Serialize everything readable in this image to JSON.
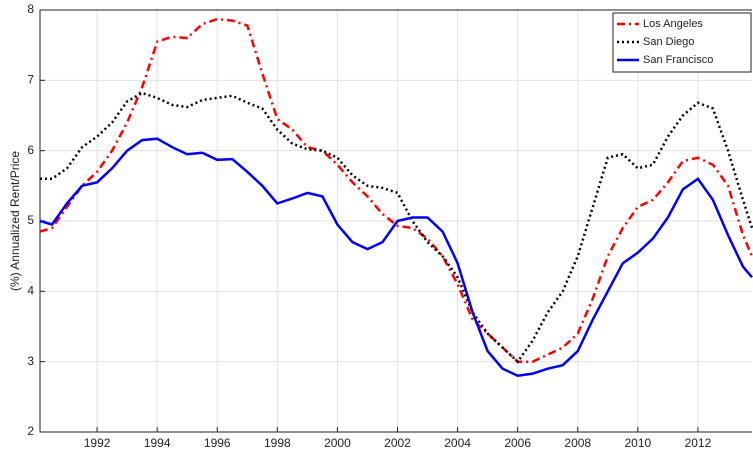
{
  "chart_data": {
    "type": "line",
    "y_label": "(%) Annualized Rent/Price",
    "x": [
      1990.1,
      1990.5,
      1991,
      1991.5,
      1992,
      1992.5,
      1993,
      1993.5,
      1994,
      1994.5,
      1995,
      1995.5,
      1996,
      1996.5,
      1997,
      1997.5,
      1998,
      1998.5,
      1999,
      1999.5,
      2000,
      2000.5,
      2001,
      2001.5,
      2002,
      2002.5,
      2003,
      2003.5,
      2004,
      2004.5,
      2005,
      2005.5,
      2006,
      2006.5,
      2007,
      2007.5,
      2008,
      2008.5,
      2009,
      2009.5,
      2010,
      2010.5,
      2011,
      2011.5,
      2012,
      2012.5,
      2013,
      2013.5,
      2013.8
    ],
    "series": [
      {
        "name": "Los Angeles",
        "color": "#ff0000",
        "dash": "8,4,2,4",
        "values": [
          4.85,
          4.9,
          5.2,
          5.5,
          5.7,
          6.0,
          6.4,
          6.9,
          7.55,
          7.62,
          7.6,
          7.8,
          7.87,
          7.85,
          7.78,
          7.1,
          6.45,
          6.3,
          6.05,
          6.0,
          5.8,
          5.55,
          5.35,
          5.1,
          4.93,
          4.9,
          4.75,
          4.5,
          4.1,
          3.6,
          3.4,
          3.2,
          3.0,
          3.0,
          3.1,
          3.2,
          3.4,
          3.9,
          4.5,
          4.9,
          5.2,
          5.3,
          5.55,
          5.85,
          5.9,
          5.8,
          5.5,
          4.8,
          4.5
        ]
      },
      {
        "name": "San Diego",
        "color": "#000000",
        "dash": "2,3",
        "values": [
          5.6,
          5.6,
          5.75,
          6.05,
          6.2,
          6.4,
          6.7,
          6.82,
          6.75,
          6.65,
          6.62,
          6.72,
          6.75,
          6.78,
          6.68,
          6.6,
          6.3,
          6.1,
          6.02,
          6.0,
          5.9,
          5.65,
          5.5,
          5.47,
          5.4,
          5.0,
          4.7,
          4.5,
          4.2,
          3.7,
          3.4,
          3.2,
          3.0,
          3.3,
          3.7,
          4.0,
          4.5,
          5.2,
          5.9,
          5.95,
          5.75,
          5.8,
          6.2,
          6.5,
          6.68,
          6.6,
          6.0,
          5.3,
          4.9
        ]
      },
      {
        "name": "San Francisco",
        "color": "#0000ff",
        "dash": "none",
        "values": [
          5.0,
          4.95,
          5.25,
          5.5,
          5.55,
          5.75,
          6.0,
          6.15,
          6.17,
          6.05,
          5.95,
          5.97,
          5.87,
          5.88,
          5.7,
          5.5,
          5.25,
          5.32,
          5.4,
          5.35,
          4.95,
          4.7,
          4.6,
          4.7,
          5.0,
          5.05,
          5.05,
          4.85,
          4.4,
          3.7,
          3.15,
          2.9,
          2.8,
          2.83,
          2.9,
          2.95,
          3.15,
          3.6,
          4.0,
          4.4,
          4.55,
          4.75,
          5.05,
          5.45,
          5.6,
          5.3,
          4.8,
          4.35,
          4.2
        ]
      }
    ],
    "xlim": [
      1990.1,
      2013.8
    ],
    "xticks": [
      1992,
      1994,
      1996,
      1998,
      2000,
      2002,
      2004,
      2006,
      2008,
      2010,
      2012
    ],
    "ylim": [
      2,
      8
    ],
    "yticks": [
      2,
      3,
      4,
      5,
      6,
      7,
      8
    ],
    "grid": true,
    "legend": "top-right"
  }
}
